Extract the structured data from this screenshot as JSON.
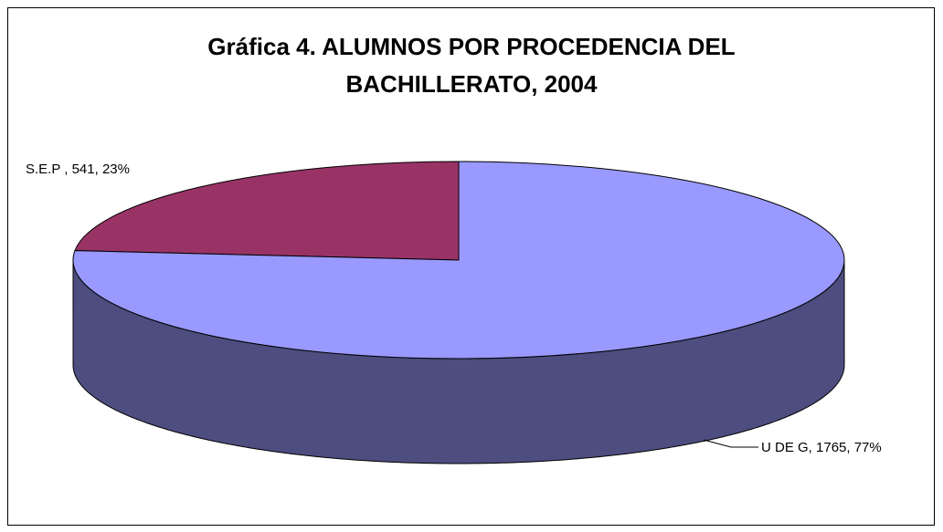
{
  "chart_data": {
    "type": "pie",
    "title": [
      "Gráfica 4. ALUMNOS POR  PROCEDENCIA DEL",
      "BACHILLERATO, 2004"
    ],
    "categories": [
      "S.E.P",
      "U DE G"
    ],
    "values": [
      541,
      1765
    ],
    "value_labels": [
      "S.E.P , 541, 23%",
      "U DE G, 1765, 77%"
    ],
    "colors": [
      "#993366",
      "#9999ff"
    ],
    "three_d": true
  }
}
